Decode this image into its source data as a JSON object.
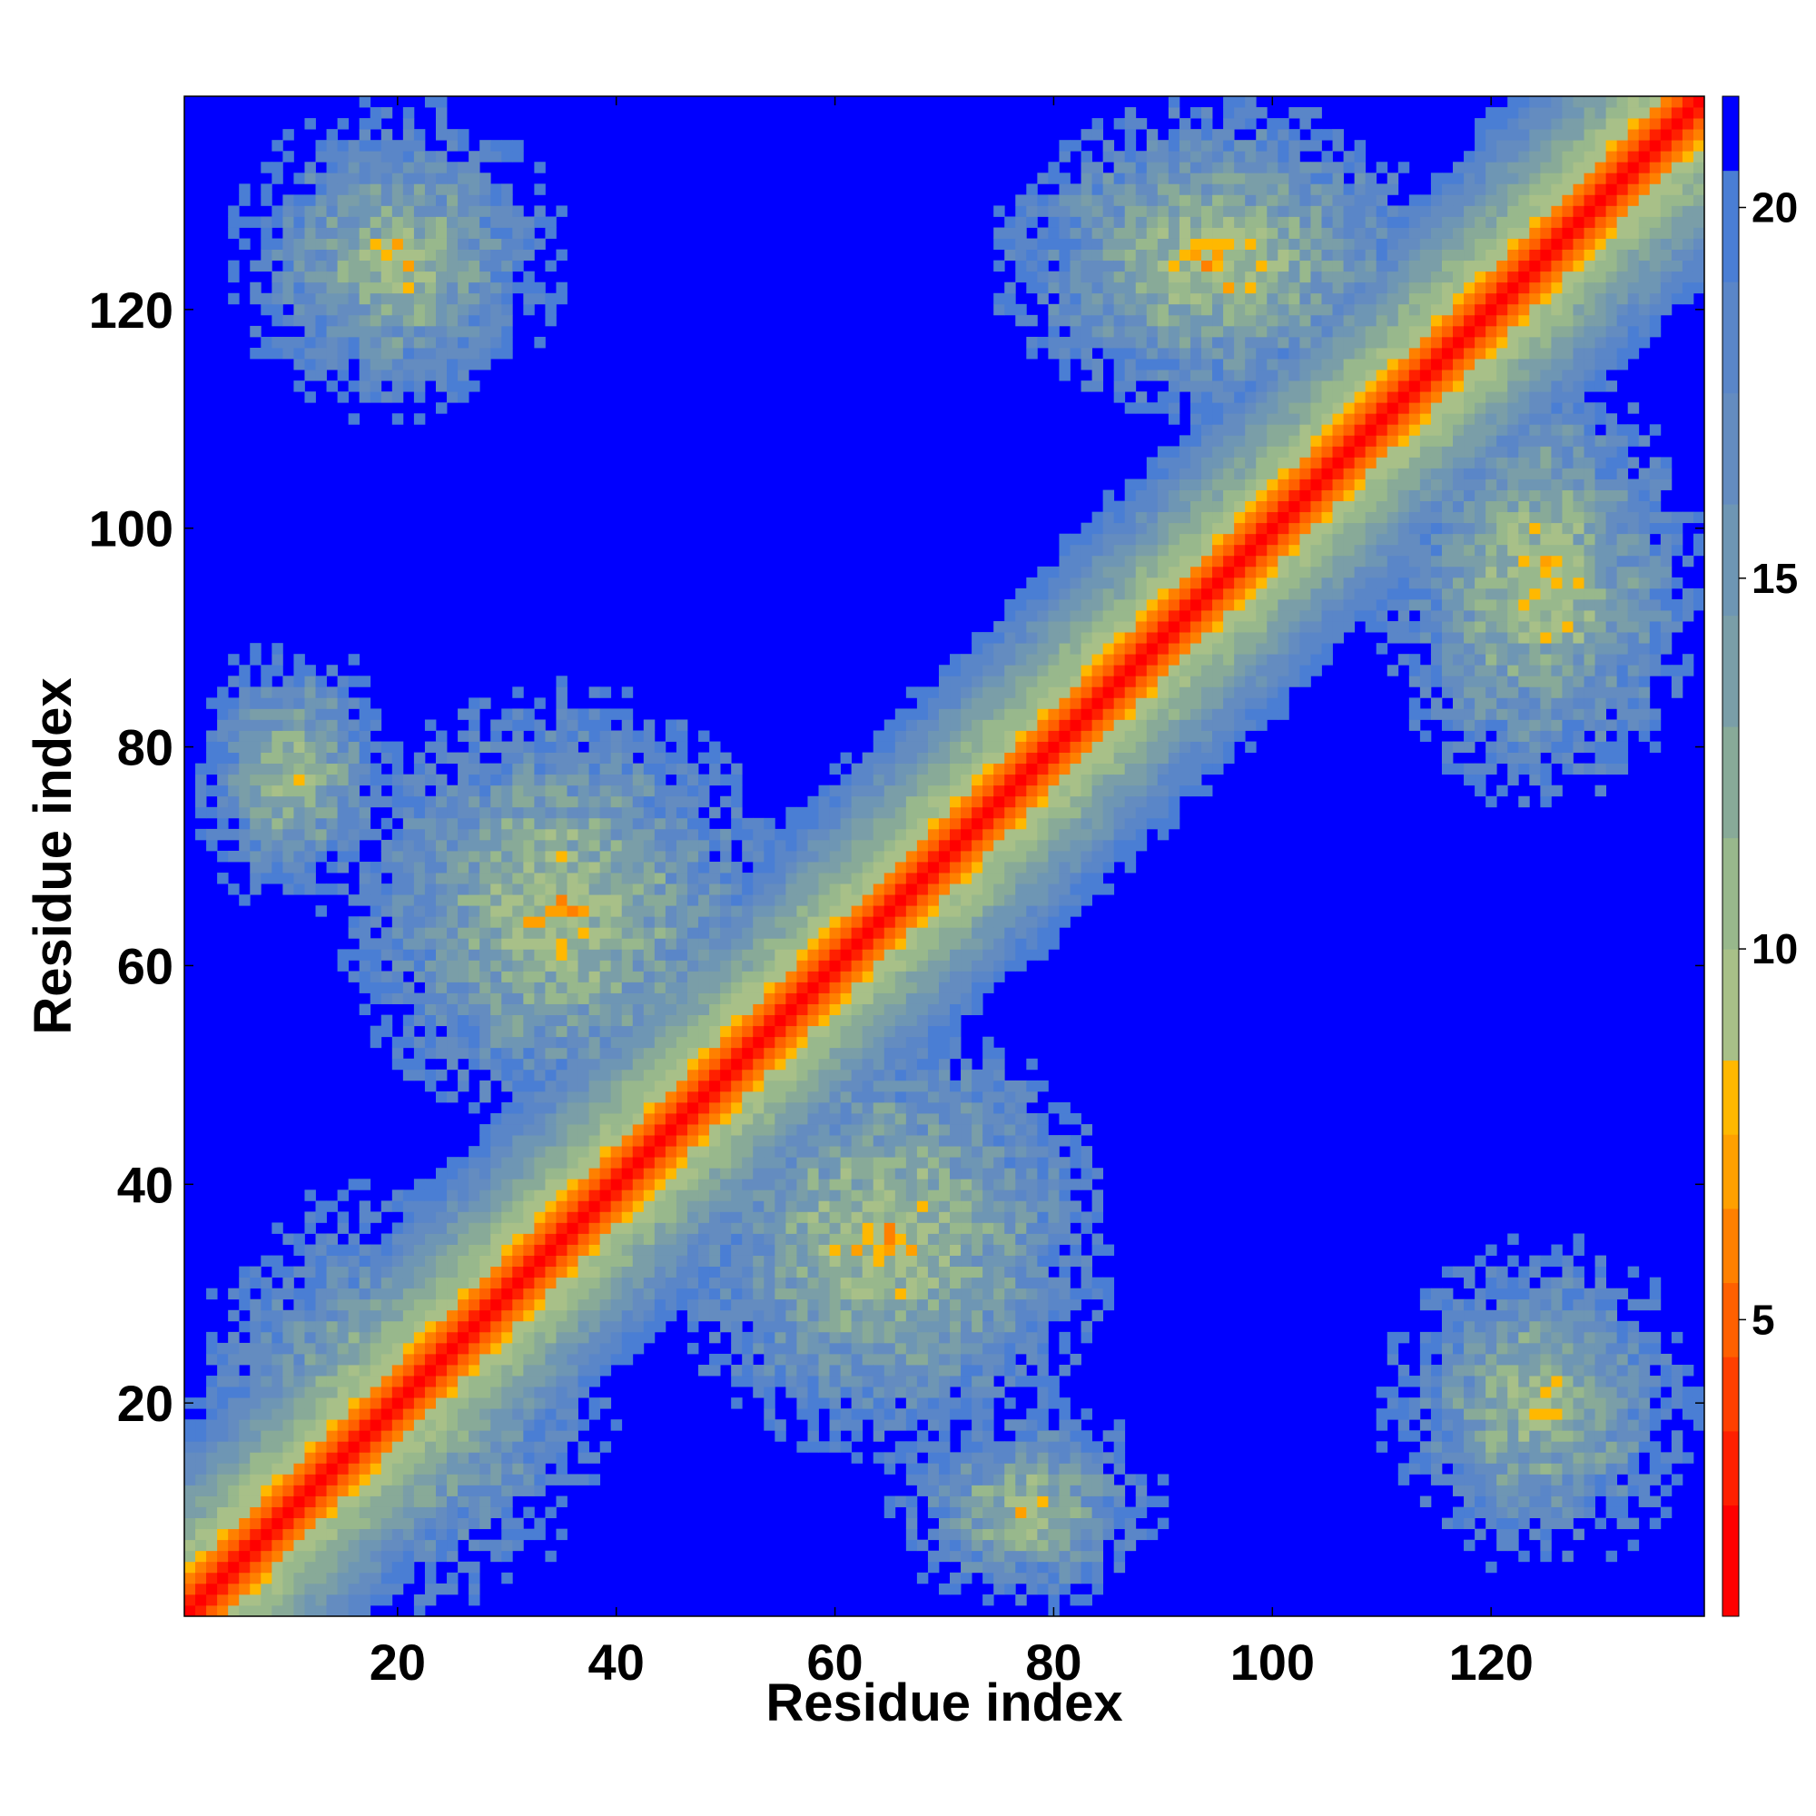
{
  "chart_data": {
    "type": "heatmap",
    "title": "",
    "xlabel": "Residue index",
    "ylabel": "Residue index",
    "n_residues": 139,
    "xlim": [
      1,
      139
    ],
    "ylim": [
      1,
      139
    ],
    "x_ticks": [
      20,
      40,
      60,
      80,
      100,
      120
    ],
    "y_ticks": [
      20,
      40,
      60,
      80,
      100,
      120
    ],
    "colorbar": {
      "range": [
        1,
        21.5
      ],
      "ticks": [
        5,
        10,
        15,
        20
      ],
      "levels": [
        {
          "upper": 2.5,
          "color": "#ff0000"
        },
        {
          "upper": 3.5,
          "color": "#ff2000"
        },
        {
          "upper": 4.5,
          "color": "#ff4000"
        },
        {
          "upper": 5.5,
          "color": "#ff6000"
        },
        {
          "upper": 6.5,
          "color": "#ff8000"
        },
        {
          "upper": 7.5,
          "color": "#ffa000"
        },
        {
          "upper": 8.5,
          "color": "#ffb800"
        },
        {
          "upper": 10.0,
          "color": "#a8c088"
        },
        {
          "upper": 11.5,
          "color": "#98b88c"
        },
        {
          "upper": 13.0,
          "color": "#88aa98"
        },
        {
          "upper": 14.5,
          "color": "#7a9ea8"
        },
        {
          "upper": 16.0,
          "color": "#6e96b4"
        },
        {
          "upper": 17.5,
          "color": "#648cc0"
        },
        {
          "upper": 19.0,
          "color": "#5a86c8"
        },
        {
          "upper": 20.5,
          "color": "#4a7ed4"
        },
        {
          "upper": 21.5,
          "color": "#0000ff"
        }
      ]
    },
    "contact_regions": [
      {
        "description": "diagonal self-contact band",
        "x_range": [
          1,
          139
        ],
        "y_range": [
          1,
          139
        ]
      },
      {
        "x_range": [
          45,
          85
        ],
        "y_range": [
          15,
          55
        ],
        "distance_min": 5
      },
      {
        "x_range": [
          15,
          55
        ],
        "y_range": [
          45,
          85
        ],
        "distance_min": 5
      },
      {
        "x_range": [
          1,
          40
        ],
        "y_range": [
          1,
          40
        ],
        "distance_min": 6
      },
      {
        "x_range": [
          1,
          20
        ],
        "y_range": [
          65,
          90
        ],
        "distance_min": 6
      },
      {
        "x_range": [
          65,
          90
        ],
        "y_range": [
          1,
          20
        ],
        "distance_min": 6
      },
      {
        "x_range": [
          5,
          35
        ],
        "y_range": [
          110,
          139
        ],
        "distance_min": 6
      },
      {
        "x_range": [
          110,
          139
        ],
        "y_range": [
          5,
          35
        ],
        "distance_min": 6
      },
      {
        "x_range": [
          75,
          115
        ],
        "y_range": [
          110,
          139
        ],
        "distance_min": 5
      },
      {
        "x_range": [
          110,
          139
        ],
        "y_range": [
          75,
          115
        ],
        "distance_min": 5
      }
    ]
  }
}
